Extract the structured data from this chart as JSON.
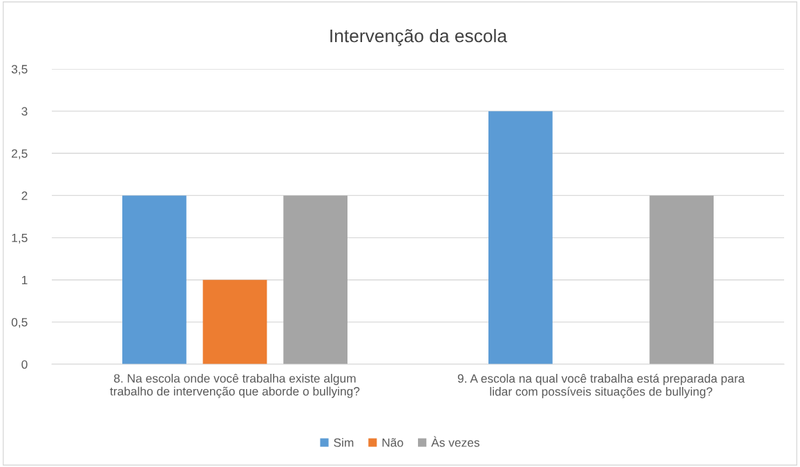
{
  "chart_data": {
    "type": "bar",
    "title": "Intervenção da escola",
    "categories": [
      "8. Na escola onde você trabalha existe algum\ntrabalho de intervenção que aborde o bullying?",
      "9. A escola na qual você trabalha está preparada para\nlidar com possíveis situações de bullying?"
    ],
    "series": [
      {
        "name": "Sim",
        "color": "#5b9bd5",
        "values": [
          2,
          3
        ]
      },
      {
        "name": "Não",
        "color": "#ed7d31",
        "values": [
          1,
          0
        ]
      },
      {
        "name": "Às vezes",
        "color": "#a5a5a5",
        "values": [
          2,
          2
        ]
      }
    ],
    "ylim": [
      0,
      3.5
    ],
    "yticks": [
      0,
      {
        "value": 0.5,
        "label": "0,5"
      },
      1,
      {
        "value": 1.5,
        "label": "1,5"
      },
      2,
      {
        "value": 2.5,
        "label": "2,5"
      },
      3,
      {
        "value": 3.5,
        "label": "3,5"
      }
    ],
    "grid": "y",
    "legend": "bottom"
  }
}
